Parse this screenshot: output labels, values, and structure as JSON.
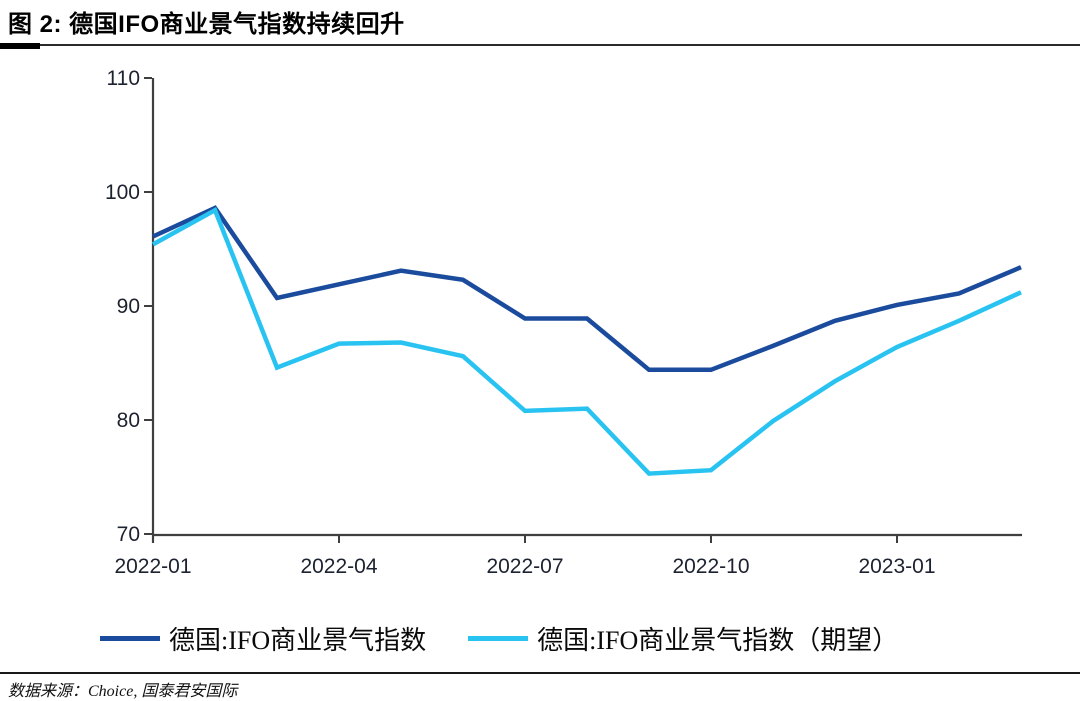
{
  "title": "图 2:  德国IFO商业景气指数持续回升",
  "source": "数据来源：Choice, 国泰君安国际",
  "colors": {
    "navy": "#1B4B9C",
    "cyan": "#29C3F2",
    "axis": "#3F3F3F",
    "tick_text": "#1D2230",
    "rule": "#000000"
  },
  "chart_data": {
    "type": "line",
    "x": [
      "2022-01",
      "2022-02",
      "2022-03",
      "2022-04",
      "2022-05",
      "2022-06",
      "2022-07",
      "2022-08",
      "2022-09",
      "2022-10",
      "2022-11",
      "2022-12",
      "2023-01",
      "2023-02",
      "2023-03"
    ],
    "series": [
      {
        "name": "德国:IFO商业景气指数",
        "color": "#1B4B9C",
        "values": [
          96.1,
          98.6,
          90.7,
          91.9,
          93.1,
          92.3,
          88.9,
          88.9,
          84.4,
          84.4,
          86.5,
          88.7,
          90.1,
          91.1,
          93.4
        ]
      },
      {
        "name": "德国:IFO商业景气指数（期望）",
        "color": "#29C3F2",
        "values": [
          95.4,
          98.4,
          84.6,
          86.7,
          86.8,
          85.6,
          80.8,
          81.0,
          75.3,
          75.6,
          79.9,
          83.4,
          86.4,
          88.7,
          91.2
        ]
      }
    ],
    "ylim": [
      70,
      110
    ],
    "yticks": [
      70,
      80,
      90,
      100,
      110
    ],
    "xticks": [
      "2022-01",
      "2022-04",
      "2022-07",
      "2022-10",
      "2023-01"
    ],
    "grid": false,
    "legend_position": "bottom"
  }
}
